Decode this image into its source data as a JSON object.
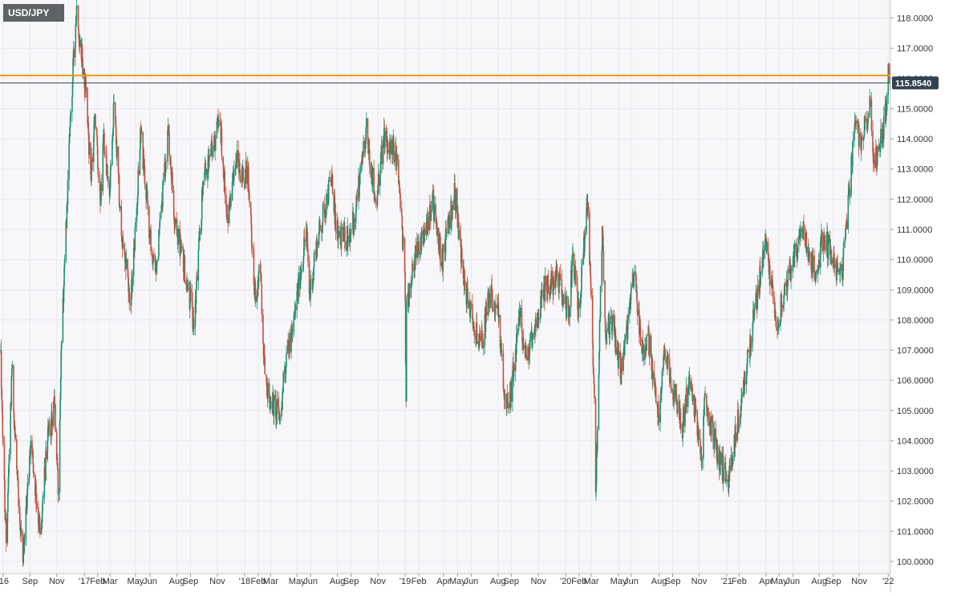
{
  "symbol": "USD/JPY",
  "colors": {
    "up": "#1f8f6f",
    "down": "#c0533f",
    "resistance": "#f09a1a",
    "last_line": "#33424f",
    "price_tag_bg": "#33424f",
    "grid": "#e9e9ee",
    "plot_bg": "#f7f7fa"
  },
  "chart_data": {
    "type": "candlestick",
    "title": "USD/JPY",
    "xlabel": "",
    "ylabel": "",
    "grid": true,
    "y_axis_position": "right",
    "ylim": [
      99.6,
      118.6
    ],
    "xlim": [
      "2016-06-24",
      "2022-01-08"
    ],
    "y_ticks": [
      "118.0000",
      "117.0000",
      "116.0000",
      "115.0000",
      "114.0000",
      "113.0000",
      "112.0000",
      "111.0000",
      "110.0000",
      "109.0000",
      "108.0000",
      "107.0000",
      "106.0000",
      "105.0000",
      "104.0000",
      "103.0000",
      "102.0000",
      "101.0000",
      "100.0000"
    ],
    "x_ticks": [
      {
        "label": "'16",
        "date": "2016-07-01"
      },
      {
        "label": "Sep",
        "date": "2016-08-31"
      },
      {
        "label": "Nov",
        "date": "2016-10-31"
      },
      {
        "label": "'17",
        "date": "2017-01-02"
      },
      {
        "label": "Feb",
        "date": "2017-02-01"
      },
      {
        "label": "Mar",
        "date": "2017-03-01"
      },
      {
        "label": "May",
        "date": "2017-04-28"
      },
      {
        "label": "Jun",
        "date": "2017-05-31"
      },
      {
        "label": "Aug",
        "date": "2017-07-31"
      },
      {
        "label": "Sep",
        "date": "2017-08-31"
      },
      {
        "label": "Nov",
        "date": "2017-10-31"
      },
      {
        "label": "'18",
        "date": "2018-01-01"
      },
      {
        "label": "Feb",
        "date": "2018-02-01"
      },
      {
        "label": "Mar",
        "date": "2018-03-01"
      },
      {
        "label": "May",
        "date": "2018-04-30"
      },
      {
        "label": "Jun",
        "date": "2018-05-31"
      },
      {
        "label": "Aug",
        "date": "2018-07-31"
      },
      {
        "label": "Sep",
        "date": "2018-08-31"
      },
      {
        "label": "Nov",
        "date": "2018-10-31"
      },
      {
        "label": "'19",
        "date": "2019-01-01"
      },
      {
        "label": "Feb",
        "date": "2019-02-01"
      },
      {
        "label": "Apr",
        "date": "2019-03-29"
      },
      {
        "label": "May",
        "date": "2019-04-30"
      },
      {
        "label": "Jun",
        "date": "2019-05-31"
      },
      {
        "label": "Aug",
        "date": "2019-07-31"
      },
      {
        "label": "Sep",
        "date": "2019-08-30"
      },
      {
        "label": "Nov",
        "date": "2019-10-31"
      },
      {
        "label": "'20",
        "date": "2020-01-01"
      },
      {
        "label": "Feb",
        "date": "2020-01-31"
      },
      {
        "label": "Mar",
        "date": "2020-02-28"
      },
      {
        "label": "May",
        "date": "2020-04-30"
      },
      {
        "label": "Jun",
        "date": "2020-05-29"
      },
      {
        "label": "Aug",
        "date": "2020-07-31"
      },
      {
        "label": "Sep",
        "date": "2020-08-31"
      },
      {
        "label": "Nov",
        "date": "2020-10-30"
      },
      {
        "label": "'21",
        "date": "2021-01-01"
      },
      {
        "label": "Feb",
        "date": "2021-01-29"
      },
      {
        "label": "Apr",
        "date": "2021-03-31"
      },
      {
        "label": "May",
        "date": "2021-04-30"
      },
      {
        "label": "Jun",
        "date": "2021-05-31"
      },
      {
        "label": "Aug",
        "date": "2021-07-30"
      },
      {
        "label": "Sep",
        "date": "2021-08-31"
      },
      {
        "label": "Nov",
        "date": "2021-10-29"
      },
      {
        "label": "'22",
        "date": "2022-01-03"
      }
    ],
    "last_price": 115.854,
    "last_price_label": "115.8540",
    "horizontal_levels": [
      {
        "value": 116.1,
        "color": "#f09a1a"
      }
    ],
    "series_anchors": [
      {
        "date": "2016-06-24",
        "close": 107.0
      },
      {
        "date": "2016-07-08",
        "close": 100.6
      },
      {
        "date": "2016-07-21",
        "close": 106.4
      },
      {
        "date": "2016-08-05",
        "close": 101.8
      },
      {
        "date": "2016-08-16",
        "close": 100.2
      },
      {
        "date": "2016-09-02",
        "close": 104.0
      },
      {
        "date": "2016-09-23",
        "close": 100.9
      },
      {
        "date": "2016-10-10",
        "close": 104.0
      },
      {
        "date": "2016-10-26",
        "close": 105.2
      },
      {
        "date": "2016-11-04",
        "close": 102.3
      },
      {
        "date": "2016-11-10",
        "close": 107.0
      },
      {
        "date": "2016-11-30",
        "close": 114.4
      },
      {
        "date": "2016-12-15",
        "close": 118.4
      },
      {
        "date": "2016-12-23",
        "close": 117.3
      },
      {
        "date": "2017-01-05",
        "close": 115.7
      },
      {
        "date": "2017-01-17",
        "close": 112.6
      },
      {
        "date": "2017-01-26",
        "close": 114.8
      },
      {
        "date": "2017-02-07",
        "close": 111.8
      },
      {
        "date": "2017-02-15",
        "close": 114.2
      },
      {
        "date": "2017-02-28",
        "close": 112.1
      },
      {
        "date": "2017-03-10",
        "close": 115.2
      },
      {
        "date": "2017-03-27",
        "close": 110.8
      },
      {
        "date": "2017-04-17",
        "close": 108.5
      },
      {
        "date": "2017-05-10",
        "close": 114.2
      },
      {
        "date": "2017-05-31",
        "close": 110.8
      },
      {
        "date": "2017-06-14",
        "close": 109.6
      },
      {
        "date": "2017-07-11",
        "close": 114.4
      },
      {
        "date": "2017-07-27",
        "close": 111.2
      },
      {
        "date": "2017-08-25",
        "close": 109.2
      },
      {
        "date": "2017-09-08",
        "close": 107.8
      },
      {
        "date": "2017-09-29",
        "close": 112.6
      },
      {
        "date": "2017-10-06",
        "close": 113.0
      },
      {
        "date": "2017-10-20",
        "close": 113.6
      },
      {
        "date": "2017-11-06",
        "close": 114.6
      },
      {
        "date": "2017-11-24",
        "close": 111.2
      },
      {
        "date": "2017-12-13",
        "close": 113.4
      },
      {
        "date": "2017-12-29",
        "close": 112.6
      },
      {
        "date": "2018-01-08",
        "close": 113.1
      },
      {
        "date": "2018-01-26",
        "close": 108.6
      },
      {
        "date": "2018-02-06",
        "close": 109.6
      },
      {
        "date": "2018-02-16",
        "close": 106.2
      },
      {
        "date": "2018-03-02",
        "close": 105.3
      },
      {
        "date": "2018-03-23",
        "close": 104.8
      },
      {
        "date": "2018-04-06",
        "close": 106.9
      },
      {
        "date": "2018-04-20",
        "close": 107.6
      },
      {
        "date": "2018-05-21",
        "close": 111.0
      },
      {
        "date": "2018-05-29",
        "close": 108.8
      },
      {
        "date": "2018-06-15",
        "close": 110.6
      },
      {
        "date": "2018-07-19",
        "close": 112.8
      },
      {
        "date": "2018-07-27",
        "close": 111.0
      },
      {
        "date": "2018-08-13",
        "close": 110.6
      },
      {
        "date": "2018-08-31",
        "close": 111.0
      },
      {
        "date": "2018-09-11",
        "close": 111.6
      },
      {
        "date": "2018-10-04",
        "close": 114.4
      },
      {
        "date": "2018-10-26",
        "close": 111.9
      },
      {
        "date": "2018-11-13",
        "close": 114.0
      },
      {
        "date": "2018-12-13",
        "close": 113.5
      },
      {
        "date": "2018-12-31",
        "close": 109.6
      },
      {
        "date": "2019-01-03",
        "close": 105.3
      },
      {
        "date": "2019-01-04",
        "close": 108.5
      },
      {
        "date": "2019-01-18",
        "close": 109.8
      },
      {
        "date": "2019-02-14",
        "close": 111.0
      },
      {
        "date": "2019-03-05",
        "close": 111.9
      },
      {
        "date": "2019-03-25",
        "close": 109.9
      },
      {
        "date": "2019-04-24",
        "close": 112.2
      },
      {
        "date": "2019-05-13",
        "close": 109.4
      },
      {
        "date": "2019-06-03",
        "close": 108.0
      },
      {
        "date": "2019-06-25",
        "close": 107.2
      },
      {
        "date": "2019-07-10",
        "close": 108.8
      },
      {
        "date": "2019-07-31",
        "close": 108.6
      },
      {
        "date": "2019-08-13",
        "close": 105.6
      },
      {
        "date": "2019-08-26",
        "close": 105.2
      },
      {
        "date": "2019-09-19",
        "close": 108.1
      },
      {
        "date": "2019-10-03",
        "close": 106.8
      },
      {
        "date": "2019-10-31",
        "close": 108.0
      },
      {
        "date": "2019-11-13",
        "close": 109.0
      },
      {
        "date": "2019-12-13",
        "close": 109.4
      },
      {
        "date": "2020-01-08",
        "close": 108.2
      },
      {
        "date": "2020-01-17",
        "close": 110.2
      },
      {
        "date": "2020-01-31",
        "close": 108.4
      },
      {
        "date": "2020-02-20",
        "close": 111.9
      },
      {
        "date": "2020-03-06",
        "close": 105.4
      },
      {
        "date": "2020-03-09",
        "close": 102.3
      },
      {
        "date": "2020-03-24",
        "close": 111.1
      },
      {
        "date": "2020-03-31",
        "close": 107.6
      },
      {
        "date": "2020-04-16",
        "close": 107.9
      },
      {
        "date": "2020-05-06",
        "close": 106.2
      },
      {
        "date": "2020-06-05",
        "close": 109.6
      },
      {
        "date": "2020-06-22",
        "close": 106.9
      },
      {
        "date": "2020-07-06",
        "close": 107.5
      },
      {
        "date": "2020-07-31",
        "close": 104.6
      },
      {
        "date": "2020-08-13",
        "close": 107.0
      },
      {
        "date": "2020-09-21",
        "close": 104.4
      },
      {
        "date": "2020-10-07",
        "close": 106.0
      },
      {
        "date": "2020-11-06",
        "close": 103.4
      },
      {
        "date": "2020-11-11",
        "close": 105.4
      },
      {
        "date": "2020-12-17",
        "close": 103.2
      },
      {
        "date": "2021-01-06",
        "close": 102.8
      },
      {
        "date": "2021-02-05",
        "close": 105.5
      },
      {
        "date": "2021-03-31",
        "close": 110.7
      },
      {
        "date": "2021-04-23",
        "close": 107.8
      },
      {
        "date": "2021-05-17",
        "close": 109.3
      },
      {
        "date": "2021-06-23",
        "close": 111.0
      },
      {
        "date": "2021-07-19",
        "close": 109.6
      },
      {
        "date": "2021-08-11",
        "close": 110.8
      },
      {
        "date": "2021-08-31",
        "close": 109.9
      },
      {
        "date": "2021-09-10",
        "close": 109.6
      },
      {
        "date": "2021-09-20",
        "close": 109.4
      },
      {
        "date": "2021-09-30",
        "close": 111.3
      },
      {
        "date": "2021-10-20",
        "close": 114.4
      },
      {
        "date": "2021-11-03",
        "close": 114.0
      },
      {
        "date": "2021-11-24",
        "close": 115.2
      },
      {
        "date": "2021-11-30",
        "close": 113.2
      },
      {
        "date": "2021-12-15",
        "close": 113.7
      },
      {
        "date": "2021-12-29",
        "close": 115.0
      },
      {
        "date": "2022-01-04",
        "close": 116.3
      },
      {
        "date": "2022-01-07",
        "close": 115.854
      }
    ]
  }
}
